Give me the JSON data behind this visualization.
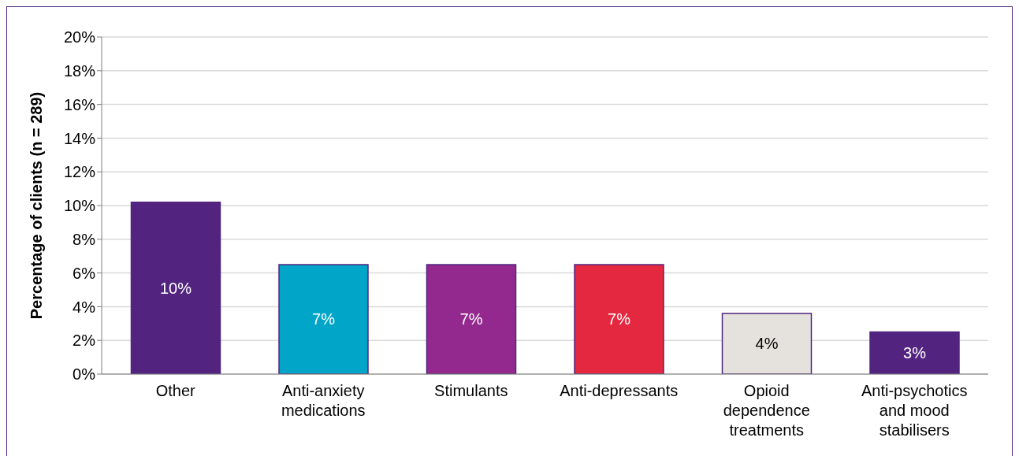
{
  "chart_data": {
    "type": "bar",
    "ylabel": "Percentage of clients (n = 289)",
    "categories": [
      "Other",
      "Anti-anxiety medications",
      "Stimulants",
      "Anti-depressants",
      "Opioid dependence treatments",
      "Anti-psychotics and mood stabilisers"
    ],
    "values": [
      10.2,
      6.5,
      6.5,
      6.5,
      3.6,
      2.5
    ],
    "value_labels": [
      "10%",
      "7%",
      "7%",
      "7%",
      "4%",
      "3%"
    ],
    "colors": [
      "#52247f",
      "#00a5c8",
      "#93298e",
      "#e4283f",
      "#e5e1dc",
      "#52247f"
    ],
    "ylim": [
      0,
      20
    ],
    "yticks": [
      {
        "value": 0,
        "label": "0%"
      },
      {
        "value": 2,
        "label": "2%"
      },
      {
        "value": 4,
        "label": "4%"
      },
      {
        "value": 6,
        "label": "6%"
      },
      {
        "value": 8,
        "label": "8%"
      },
      {
        "value": 10,
        "label": "10%"
      },
      {
        "value": 12,
        "label": "12%"
      },
      {
        "value": 14,
        "label": "14%"
      },
      {
        "value": 16,
        "label": "16%"
      },
      {
        "value": 18,
        "label": "18%"
      },
      {
        "value": 20,
        "label": "20%"
      }
    ],
    "grid": "y",
    "legend": false
  }
}
